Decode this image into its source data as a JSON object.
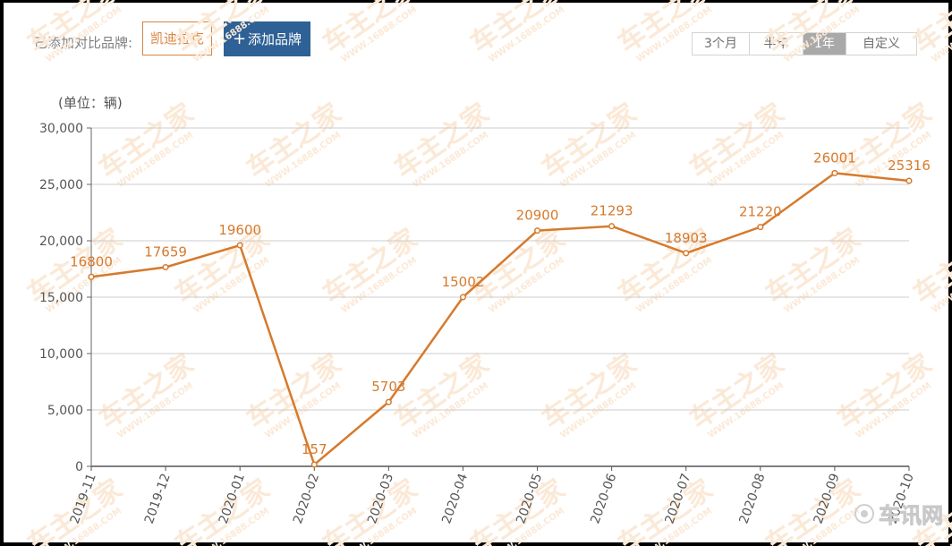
{
  "toolbar": {
    "compare_label": "已添加对比品牌:",
    "brand_tag": "凯迪拉克",
    "add_brand_label": "添加品牌",
    "add_icon": "plus-icon"
  },
  "range_tabs": [
    {
      "label": "3个月",
      "active": false
    },
    {
      "label": "半年",
      "active": false
    },
    {
      "label": "1年",
      "active": true
    },
    {
      "label": "自定义",
      "active": false
    }
  ],
  "colors": {
    "series": "#d67a2d",
    "active_tab": "#a9a9a9",
    "add_button": "#2e6195",
    "grid": "#cccccc"
  },
  "chart_data": {
    "type": "line",
    "unit_label": "(单位：辆)",
    "categories": [
      "2019-11",
      "2019-12",
      "2020-01",
      "2020-02",
      "2020-03",
      "2020-04",
      "2020-05",
      "2020-06",
      "2020-07",
      "2020-08",
      "2020-09",
      "2020-10"
    ],
    "series": [
      {
        "values": [
          16800,
          17659,
          19600,
          157,
          5703,
          15002,
          20900,
          21293,
          18903,
          21220,
          26001,
          25316
        ]
      }
    ],
    "data_labels": [
      "16800",
      "17659",
      "19600",
      "157",
      "5703",
      "15002",
      "20900",
      "21293",
      "18903",
      "21220",
      "26001",
      "25316"
    ],
    "ylim": [
      0,
      30000
    ],
    "yticks": [
      0,
      5000,
      10000,
      15000,
      20000,
      25000,
      30000
    ],
    "ytick_labels": [
      "0",
      "5,000",
      "10,000",
      "15,000",
      "20,000",
      "25,000",
      "30,000"
    ],
    "grid": true,
    "legend": false
  },
  "watermark": {
    "text": "车主之家",
    "subtext": "WWW.16888.COM",
    "corner_logo": "车讯网"
  }
}
